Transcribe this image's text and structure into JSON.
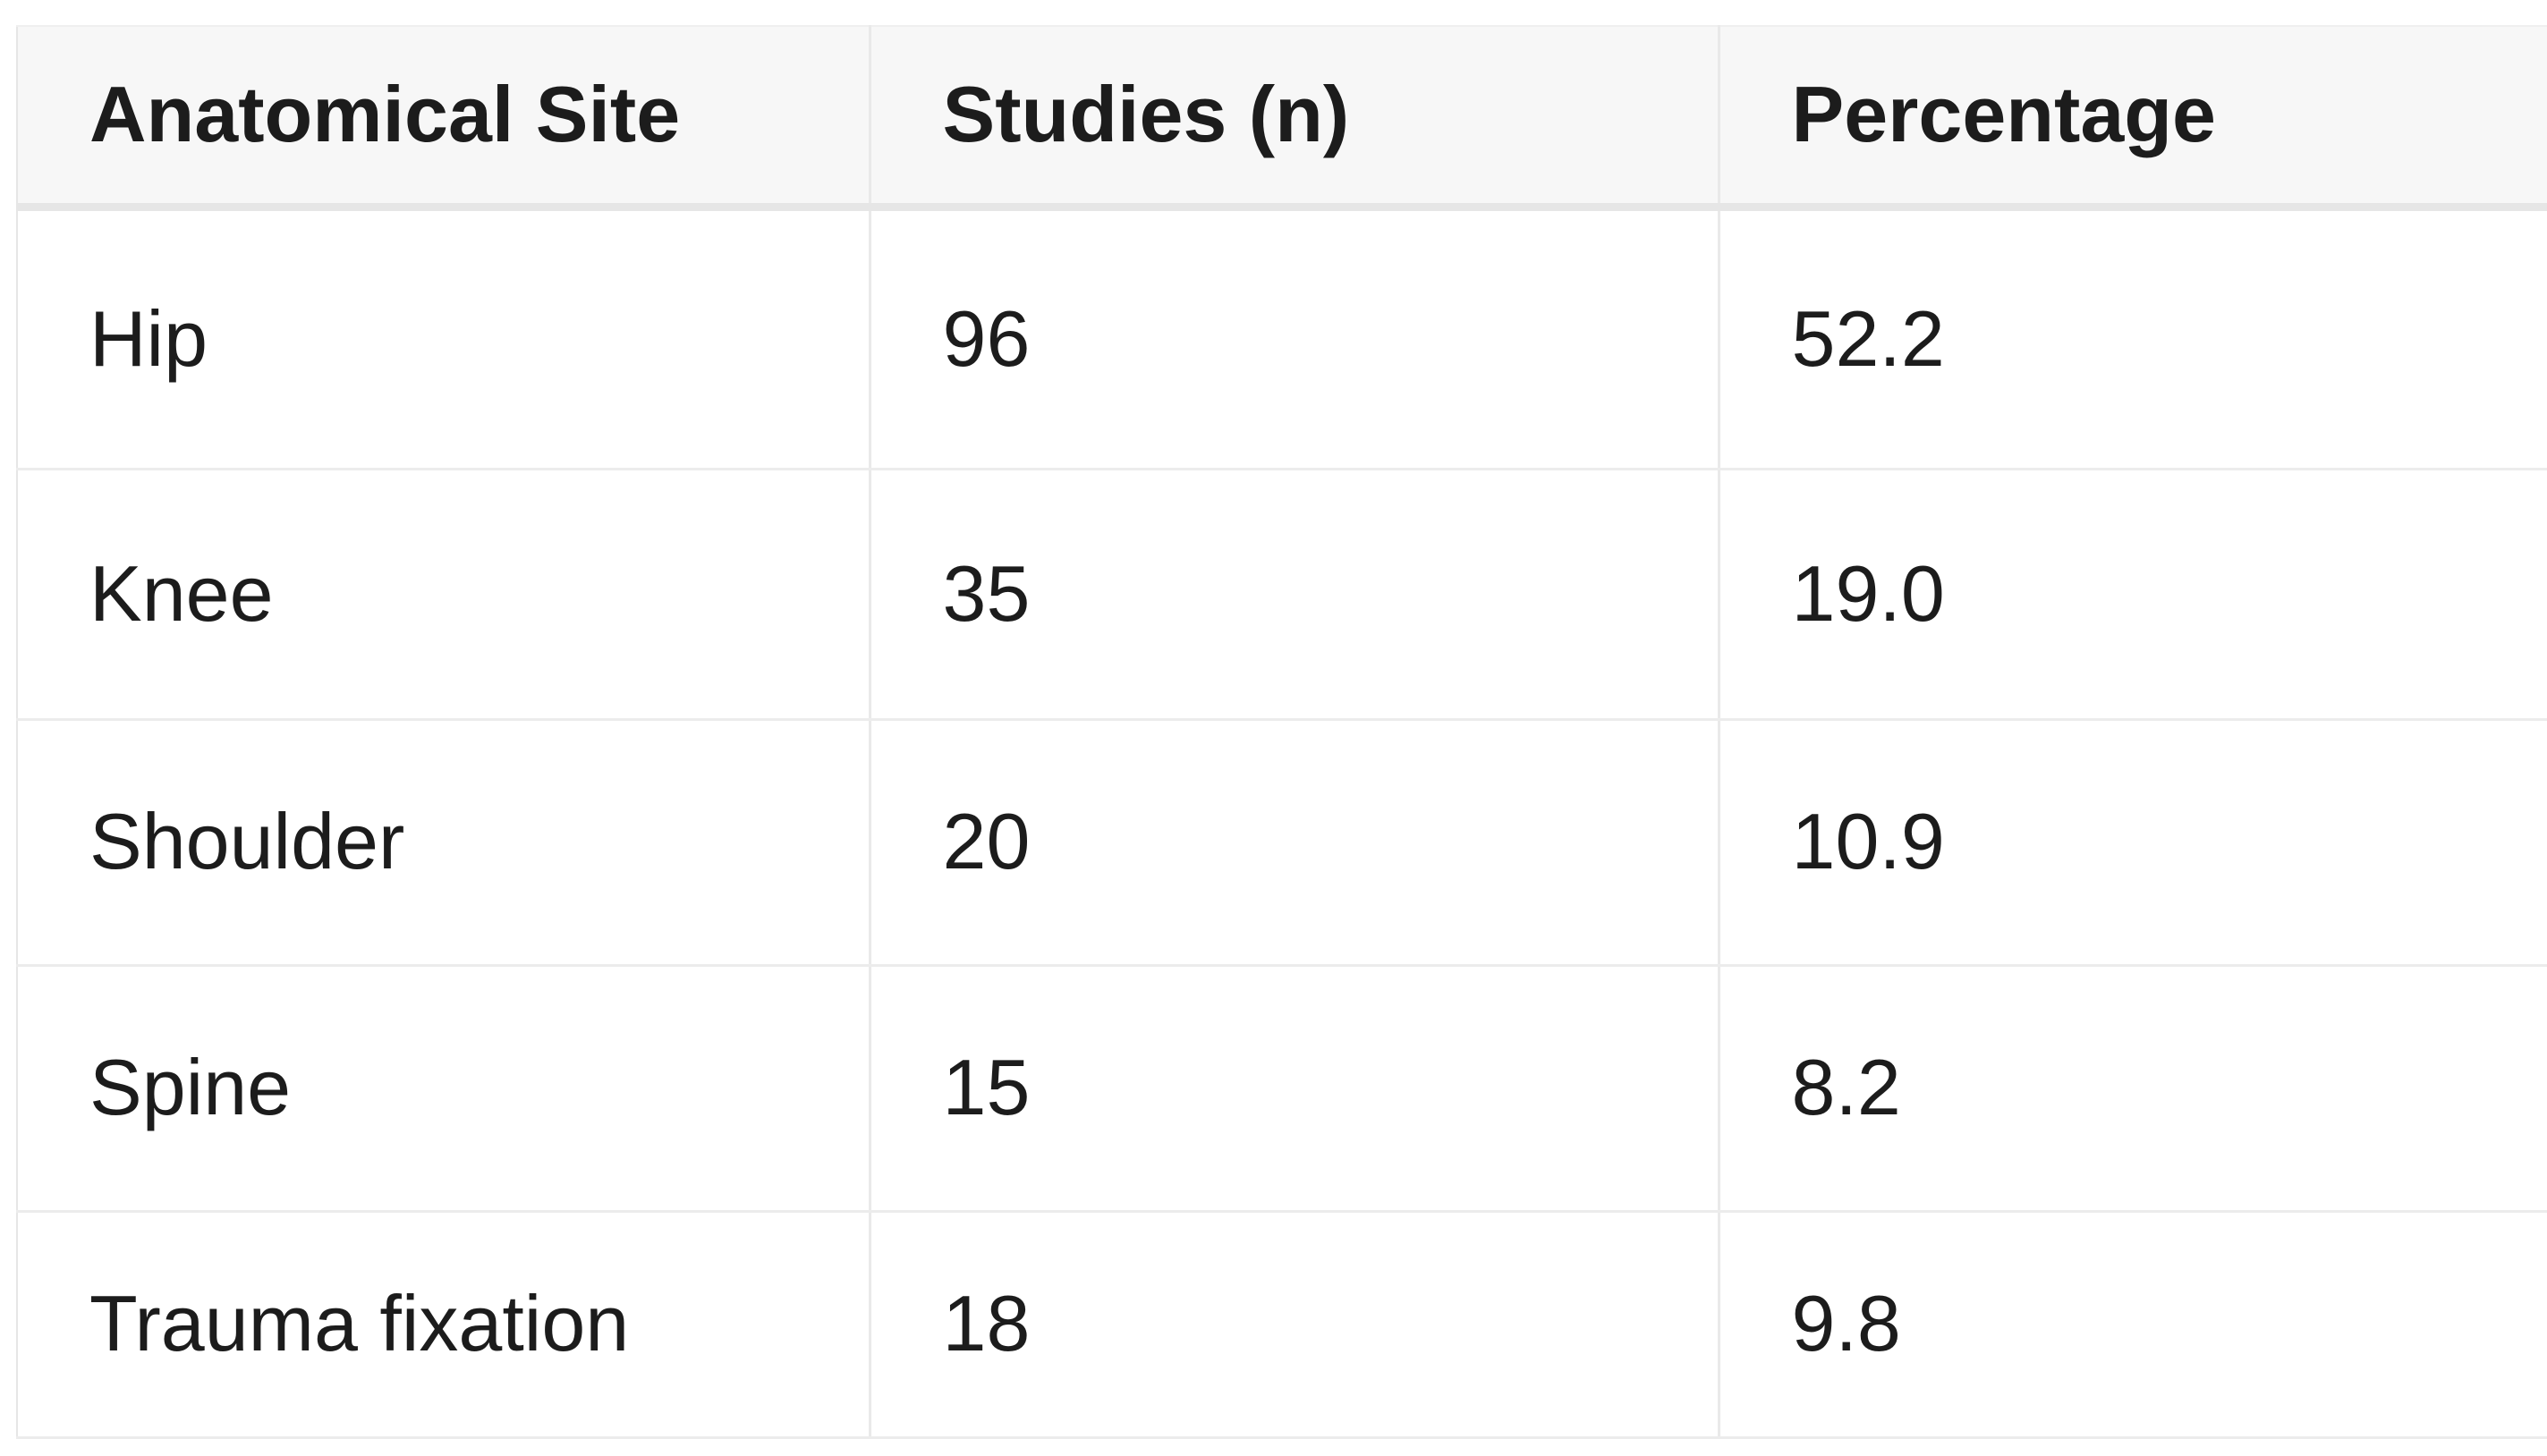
{
  "theme": {
    "page_bg": "#ffffff",
    "header_bg": "#f7f7f7",
    "table_border": "#e6e6e6",
    "row_divider": "#ececec",
    "column_divider": "#e9e9e9",
    "text_color": "#1c1c1c"
  },
  "table": {
    "columns": [
      {
        "id": "site",
        "label": "Anatomical Site"
      },
      {
        "id": "studies",
        "label": "Studies (n)"
      },
      {
        "id": "percentage",
        "label": "Percentage"
      }
    ],
    "rows": [
      {
        "site": "Hip",
        "studies": "96",
        "percentage": "52.2"
      },
      {
        "site": "Knee",
        "studies": "35",
        "percentage": "19.0"
      },
      {
        "site": "Shoulder",
        "studies": "20",
        "percentage": "10.9"
      },
      {
        "site": "Spine",
        "studies": "15",
        "percentage": "8.2"
      },
      {
        "site": "Trauma fixation",
        "studies": "18",
        "percentage": "9.8"
      }
    ]
  }
}
